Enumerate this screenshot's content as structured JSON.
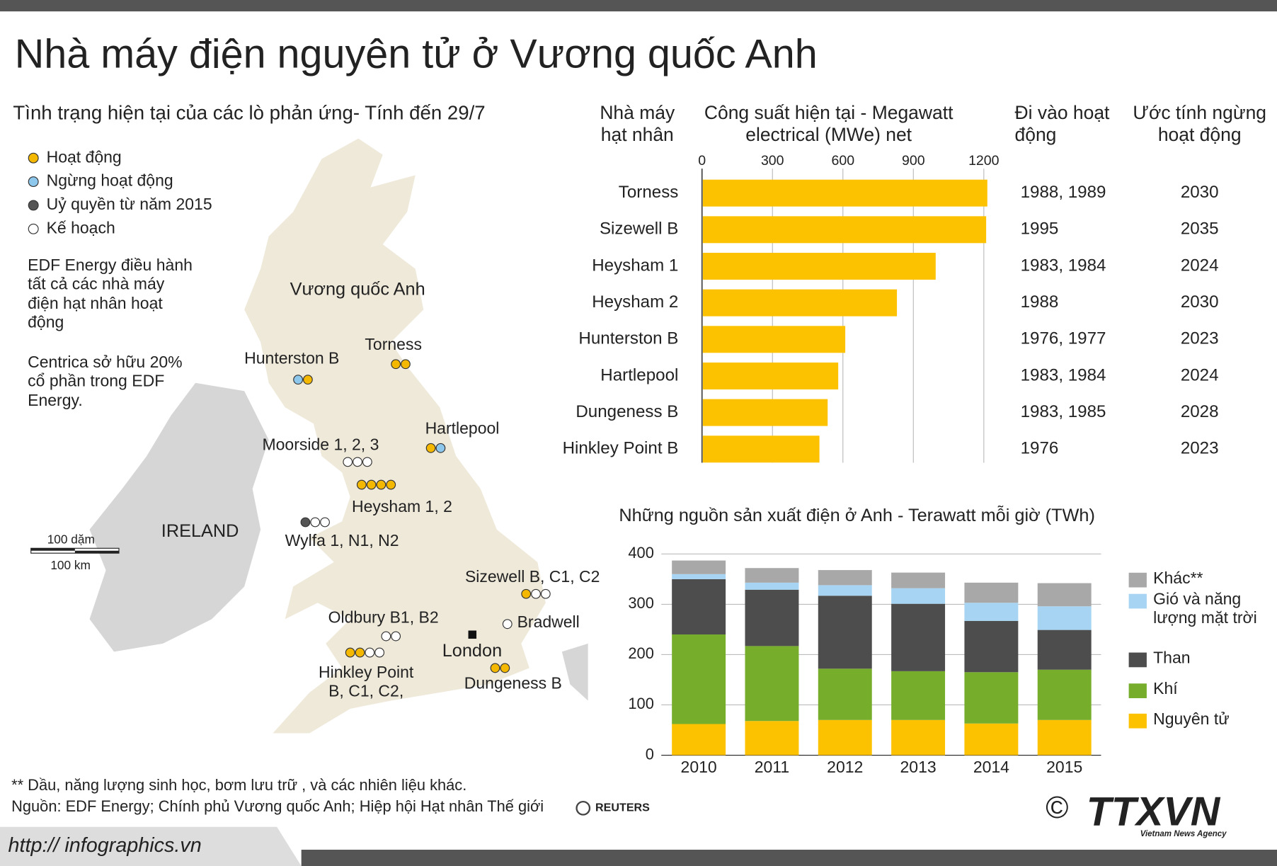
{
  "title": "Nhà máy điện nguyên tử ở Vương quốc Anh",
  "subtitle": "Tình trạng hiện tại của các lò phản ứng- Tính đến 29/7",
  "map": {
    "legend": [
      {
        "label": "Hoạt động",
        "color": "#f5b800"
      },
      {
        "label": "Ngừng hoạt động",
        "color": "#8ec7ec"
      },
      {
        "label": "Uỷ quyền từ năm 2015",
        "color": "#555555"
      },
      {
        "label": "Kế hoạch",
        "color": "#ffffff"
      }
    ],
    "notes": [
      "EDF Energy điều hành tất cả các nhà máy điện hạt nhân hoạt động",
      "Centrica sở hữu 20% cổ phần trong EDF Energy."
    ],
    "country": "Vương quốc Anh",
    "ireland": "IRELAND",
    "london": "London",
    "scale": [
      "100 dặm",
      "100 km"
    ],
    "sites": [
      {
        "name": "Torness",
        "status": [
          0,
          0
        ]
      },
      {
        "name": "Hunterston B",
        "status": [
          1,
          0
        ]
      },
      {
        "name": "Hartlepool",
        "status": [
          0,
          1
        ]
      },
      {
        "name": "Moorside 1, 2, 3",
        "status": [
          3,
          3,
          3
        ]
      },
      {
        "name": "Heysham 1, 2",
        "status": [
          0,
          0,
          0,
          0
        ]
      },
      {
        "name": "Wylfa 1, N1, N2",
        "status": [
          2,
          3,
          3
        ]
      },
      {
        "name": "Sizewell B, C1, C2",
        "status": [
          0,
          3,
          3
        ]
      },
      {
        "name": "Bradwell",
        "status": [
          3
        ]
      },
      {
        "name": "Oldbury B1, B2",
        "status": [
          3,
          3
        ]
      },
      {
        "name": "Hinkley Point B, C1, C2,",
        "status": [
          0,
          0,
          3,
          3
        ]
      },
      {
        "name": "Dungeness B",
        "status": [
          0,
          0
        ]
      }
    ]
  },
  "chart_data": [
    {
      "type": "bar",
      "orientation": "horizontal",
      "category_header": "Nhà máy hạt nhân",
      "title": "Công suất hiện tại  - Megawatt electrical (MWe) net",
      "categories": [
        "Torness",
        "Sizewell B",
        "Heysham 1",
        "Heysham 2",
        "Hunterston B",
        "Hartlepool",
        "Dungeness B",
        "Hinkley Point B"
      ],
      "values": [
        1215,
        1210,
        995,
        830,
        610,
        580,
        535,
        500
      ],
      "color": "#fcc200",
      "xlim": [
        0,
        1200
      ],
      "xticks": [
        0,
        300,
        600,
        900,
        1200
      ],
      "grid": true,
      "columns": [
        {
          "header": "Đi vào hoạt động",
          "values": [
            "1988, 1989",
            "1995",
            "1983, 1984",
            "1988",
            "1976, 1977",
            "1983, 1984",
            "1983, 1985",
            "1976"
          ]
        },
        {
          "header": "Ước tính ngừng hoạt động",
          "values": [
            "2030",
            "2035",
            "2024",
            "2030",
            "2023",
            "2024",
            "2028",
            "2023"
          ]
        }
      ]
    },
    {
      "type": "stacked_bar",
      "title": "Những nguồn sản xuất điện ở Anh - Terawatt mỗi giờ (TWh)",
      "categories": [
        "2010",
        "2011",
        "2012",
        "2013",
        "2014",
        "2015"
      ],
      "ylim": [
        0,
        400
      ],
      "yticks": [
        0,
        100,
        200,
        300,
        400
      ],
      "grid": true,
      "series": [
        {
          "name": "Nguyên tử",
          "color": "#fcc200",
          "values": [
            62,
            68,
            70,
            70,
            63,
            70
          ]
        },
        {
          "name": "Khí",
          "color": "#76ad2b",
          "values": [
            178,
            149,
            102,
            97,
            102,
            100
          ]
        },
        {
          "name": "Than",
          "color": "#4d4d4d",
          "values": [
            110,
            112,
            145,
            134,
            102,
            79
          ]
        },
        {
          "name": "Gió và năng lượng mặt trời",
          "color": "#a6d4f2",
          "values": [
            10,
            14,
            21,
            31,
            36,
            47
          ]
        },
        {
          "name": "Khác**",
          "color": "#a8a8a8",
          "values": [
            27,
            29,
            30,
            31,
            40,
            46
          ]
        }
      ]
    }
  ],
  "footer": {
    "note": "** Dầu, năng lượng sinh học, bơm lưu trữ , và các nhiên liệu khác.",
    "source": "Nguồn: EDF Energy; Chính phủ Vương quốc Anh; Hiệp hội Hạt nhân Thế giới",
    "reuters": "REUTERS",
    "url": "http:// infographics.vn",
    "copyright": "©",
    "logo": "TTXVN",
    "agency": "Vietnam News Agency"
  }
}
